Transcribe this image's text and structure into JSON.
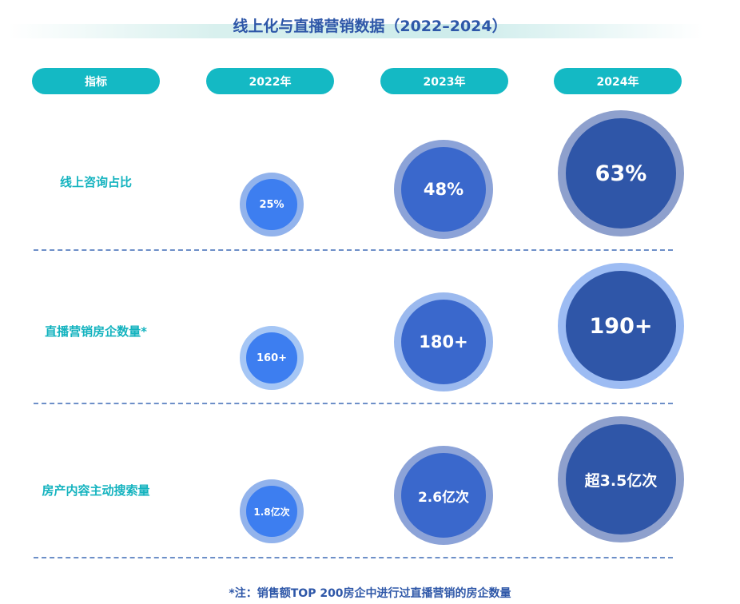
{
  "chart_data": {
    "type": "table",
    "title": "线上化与直播营销数据（2022–2024）",
    "header": [
      "指标",
      "2022年",
      "2023年",
      "2024年"
    ],
    "rows": [
      {
        "label": "线上咨询占比",
        "values": [
          "25%",
          "48%",
          "63%"
        ]
      },
      {
        "label": "直播营销房企数量*",
        "values": [
          "160+",
          "180+",
          "190+"
        ]
      },
      {
        "label": "房产内容主动搜索量",
        "values": [
          "1.8亿次",
          "2.6亿次",
          "超3.5亿次"
        ]
      }
    ],
    "footnote": "*注：销售额TOP 200房企中进行过直播营销的房企数量",
    "colors": {
      "header": "#14b9c4",
      "title": "#2e57a8",
      "row_label": "#14b3bf",
      "bubble_2022": "#3d7ef0",
      "bubble_2023": "#3a68cc",
      "bubble_2024": "#2f56a8"
    }
  }
}
